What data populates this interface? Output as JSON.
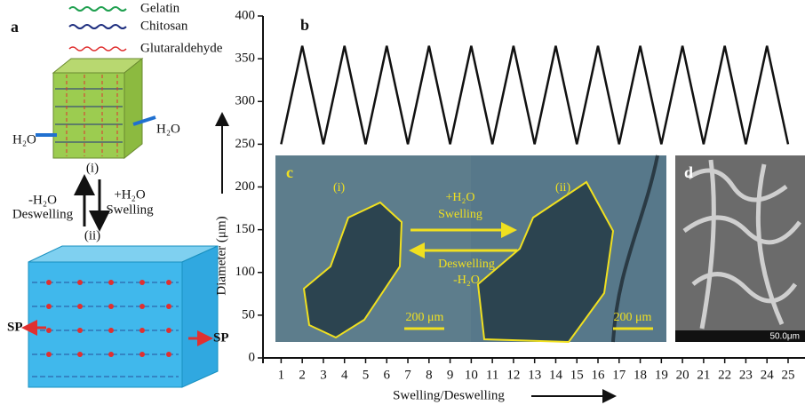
{
  "chart_data": {
    "type": "line",
    "title": "b",
    "x": [
      1,
      2,
      3,
      4,
      5,
      6,
      7,
      8,
      9,
      10,
      11,
      12,
      13,
      14,
      15,
      16,
      17,
      18,
      19,
      20,
      21,
      22,
      23,
      24,
      25
    ],
    "values": [
      250,
      365,
      250,
      365,
      250,
      365,
      250,
      365,
      250,
      365,
      250,
      365,
      250,
      365,
      250,
      365,
      250,
      365,
      250,
      365,
      250,
      365,
      250,
      365,
      250
    ],
    "color": "#111111",
    "xlim": [
      0.1,
      25.8
    ],
    "ylim": [
      0,
      400
    ],
    "xticks": [
      1,
      2,
      3,
      4,
      5,
      6,
      7,
      8,
      9,
      10,
      11,
      12,
      13,
      14,
      15,
      16,
      17,
      18,
      19,
      20,
      21,
      22,
      23,
      24,
      25
    ],
    "yticks": [
      0,
      50,
      100,
      150,
      200,
      250,
      300,
      350,
      400
    ],
    "xlabel": "Swelling/Deswelling",
    "ylabel": "Diameter (μm)"
  },
  "panel_a": {
    "label": "a",
    "legend": [
      "Gelatin",
      "Chitosan",
      "Glutaraldehyde"
    ],
    "water_left": "H₂O",
    "water_right": "H₂O",
    "state_1": "(i)",
    "state_2": "(ii)",
    "left_arrow": [
      "-H₂O",
      "Deswelling"
    ],
    "right_arrow": [
      "+H₂O",
      "Swelling"
    ],
    "sp_left": "SP",
    "sp_right": "SP"
  },
  "panel_c": {
    "label": "c",
    "state_1": "(i)",
    "state_2": "(ii)",
    "forward": [
      "+H₂O",
      "Swelling"
    ],
    "backward": [
      "Deswelling",
      "-H₂O"
    ],
    "scale_1": "200 μm",
    "scale_2": "200 μm"
  },
  "panel_d": {
    "label": "d",
    "scale": "50.0μm"
  }
}
